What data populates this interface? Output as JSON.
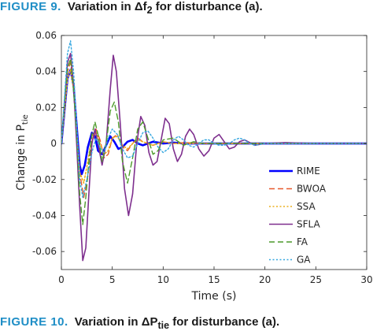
{
  "caption_top": {
    "label": "FIGURE 9.",
    "text": "Variation in Δf",
    "subscript": "2",
    "suffix": "for disturbance (a)."
  },
  "caption_bottom": {
    "label": "FIGURE 10.",
    "text": "Variation in ΔP",
    "subscript": "tie",
    "suffix": "for disturbance (a)."
  },
  "chart_data": {
    "type": "line",
    "title": "",
    "xlabel": "Time (s)",
    "ylabel": "Change in P",
    "ylabel_subscript": "tie",
    "xlim": [
      0,
      30
    ],
    "ylim": [
      -0.07,
      0.06
    ],
    "xticks": [
      0,
      5,
      10,
      15,
      20,
      25,
      30
    ],
    "yticks": [
      0.06,
      0.04,
      0.02,
      0,
      -0.02,
      -0.04,
      -0.06
    ],
    "xtick_labels": [
      "0",
      "5",
      "10",
      "15",
      "20",
      "25",
      "30"
    ],
    "ytick_labels": [
      "0.06",
      "0.04",
      "0.02",
      "0",
      "-0.02",
      "-0.04",
      "-0.06"
    ],
    "grid": false,
    "legend_position": "lower-right",
    "series": [
      {
        "name": "RIME",
        "color": "#0000ff",
        "style": "solid",
        "width": 2.6,
        "x": [
          0,
          0.3,
          0.6,
          0.9,
          1.2,
          1.5,
          1.8,
          2.0,
          2.3,
          2.6,
          3.0,
          3.3,
          3.6,
          4.0,
          4.4,
          4.8,
          5.2,
          5.6,
          6.0,
          6.5,
          7.0,
          7.5,
          8.0,
          9.0,
          10.0,
          11.0,
          12.0,
          14.0,
          16.0,
          20.0,
          30.0
        ],
        "y": [
          0,
          0.018,
          0.036,
          0.041,
          0.032,
          0.01,
          -0.012,
          -0.017,
          -0.012,
          -0.002,
          0.006,
          0.004,
          -0.004,
          -0.006,
          -0.001,
          0.004,
          0.001,
          -0.003,
          -0.002,
          0.001,
          0.002,
          0.0,
          -0.001,
          0.001,
          0.0,
          0.0005,
          0.0,
          0.0,
          0.0,
          0.0,
          0.0
        ]
      },
      {
        "name": "BWOA",
        "color": "#e8592c",
        "style": "dashed",
        "width": 1.4,
        "x": [
          0,
          0.3,
          0.6,
          0.9,
          1.2,
          1.5,
          1.8,
          2.2,
          2.6,
          3.0,
          3.4,
          3.8,
          4.2,
          4.6,
          5.0,
          5.5,
          6.0,
          6.5,
          7.0,
          7.5,
          8.0,
          9.0,
          10.0,
          11.0,
          12.0,
          14.0,
          16.0,
          20.0,
          30.0
        ],
        "y": [
          0,
          0.02,
          0.04,
          0.045,
          0.033,
          0.008,
          -0.016,
          -0.03,
          -0.018,
          0.0,
          0.008,
          0.002,
          -0.008,
          -0.006,
          0.003,
          0.005,
          -0.002,
          -0.004,
          0.0,
          0.003,
          0.001,
          -0.001,
          0.001,
          0.0,
          0.0005,
          0.0,
          0.0,
          0.0,
          0.0
        ]
      },
      {
        "name": "SSA",
        "color": "#ecb01f",
        "style": "dotted",
        "width": 1.6,
        "x": [
          0,
          0.3,
          0.6,
          0.9,
          1.2,
          1.5,
          1.8,
          2.2,
          2.6,
          3.0,
          3.4,
          3.8,
          4.2,
          4.6,
          5.0,
          5.5,
          6.0,
          6.5,
          7.0,
          7.5,
          8.0,
          9.0,
          10.0,
          11.0,
          12.0,
          14.0,
          16.0,
          20.0,
          30.0
        ],
        "y": [
          0,
          0.018,
          0.036,
          0.041,
          0.03,
          0.006,
          -0.016,
          -0.022,
          -0.01,
          0.004,
          0.007,
          0.0,
          -0.006,
          -0.004,
          0.003,
          0.004,
          -0.001,
          -0.003,
          0.0,
          0.002,
          0.001,
          -0.001,
          0.001,
          0.0,
          0.0,
          0.0,
          0.0,
          0.0,
          0.0
        ]
      },
      {
        "name": "SFLA",
        "color": "#7e2f8e",
        "style": "solid",
        "width": 1.6,
        "x": [
          0,
          0.3,
          0.6,
          0.9,
          1.2,
          1.5,
          1.8,
          2.1,
          2.4,
          2.7,
          3.0,
          3.3,
          3.6,
          4.0,
          4.4,
          4.8,
          5.1,
          5.4,
          5.8,
          6.2,
          6.6,
          7.0,
          7.4,
          7.8,
          8.2,
          8.6,
          9.0,
          9.4,
          9.8,
          10.2,
          10.6,
          11.0,
          11.4,
          11.8,
          12.2,
          12.6,
          13.0,
          13.5,
          14.0,
          14.5,
          15.0,
          15.5,
          16.0,
          16.5,
          17.0,
          17.5,
          18.0,
          19.0,
          20.0,
          22.0,
          25.0,
          30.0
        ],
        "y": [
          0,
          0.022,
          0.045,
          0.05,
          0.032,
          0.0,
          -0.035,
          -0.065,
          -0.058,
          -0.028,
          0.0,
          0.008,
          0.0,
          -0.012,
          0.0,
          0.03,
          0.049,
          0.04,
          0.01,
          -0.025,
          -0.04,
          -0.028,
          0.0,
          0.015,
          0.01,
          -0.005,
          -0.012,
          -0.01,
          0.002,
          0.014,
          0.011,
          -0.003,
          -0.01,
          -0.006,
          0.004,
          0.008,
          0.005,
          -0.003,
          -0.007,
          -0.004,
          0.003,
          0.005,
          0.001,
          -0.003,
          -0.002,
          0.001,
          0.002,
          -0.001,
          0.0,
          0.0005,
          0.0,
          0.0
        ]
      },
      {
        "name": "FA",
        "color": "#4c9a2a",
        "style": "dashed",
        "width": 1.4,
        "x": [
          0,
          0.3,
          0.6,
          0.9,
          1.2,
          1.5,
          1.8,
          2.1,
          2.4,
          2.7,
          3.0,
          3.3,
          3.6,
          4.0,
          4.4,
          4.8,
          5.2,
          5.6,
          6.0,
          6.5,
          7.0,
          7.5,
          8.0,
          8.5,
          9.0,
          9.5,
          10.0,
          11.0,
          12.0,
          13.0,
          14.0,
          16.0,
          20.0,
          30.0
        ],
        "y": [
          0,
          0.022,
          0.042,
          0.047,
          0.03,
          0.005,
          -0.028,
          -0.045,
          -0.03,
          -0.01,
          0.005,
          0.012,
          0.005,
          -0.01,
          0.0,
          0.018,
          0.023,
          0.012,
          -0.01,
          -0.022,
          -0.008,
          0.008,
          0.012,
          0.003,
          -0.006,
          -0.004,
          0.002,
          0.003,
          -0.001,
          0.001,
          0.0,
          0.0,
          0.0,
          0.0
        ]
      },
      {
        "name": "GA",
        "color": "#35a7e0",
        "style": "dotted",
        "width": 1.4,
        "x": [
          0,
          0.3,
          0.6,
          0.9,
          1.2,
          1.5,
          1.8,
          2.1,
          2.5,
          3.0,
          3.4,
          3.8,
          4.2,
          4.6,
          5.0,
          5.5,
          6.0,
          6.5,
          7.0,
          7.5,
          8.0,
          8.5,
          9.0,
          9.5,
          10.0,
          10.5,
          11.0,
          11.5,
          12.0,
          12.5,
          13.0,
          13.5,
          14.0,
          14.5,
          15.0,
          15.5,
          16.0,
          16.5,
          17.0,
          17.5,
          18.0,
          18.5,
          19.0,
          20.0,
          22.0,
          25.0,
          30.0
        ],
        "y": [
          0,
          0.025,
          0.05,
          0.057,
          0.04,
          0.01,
          -0.02,
          -0.03,
          -0.02,
          -0.005,
          0.003,
          -0.002,
          -0.005,
          0.003,
          0.008,
          0.005,
          -0.003,
          -0.008,
          -0.007,
          0.0,
          0.006,
          0.007,
          0.003,
          -0.002,
          -0.005,
          -0.003,
          0.002,
          0.004,
          0.002,
          -0.001,
          -0.002,
          0.0,
          0.002,
          0.002,
          0.0,
          -0.001,
          -0.001,
          0.0,
          0.002,
          0.003,
          0.002,
          0.0,
          -0.001,
          0.0,
          0.0,
          0.0,
          0.0
        ]
      }
    ]
  }
}
